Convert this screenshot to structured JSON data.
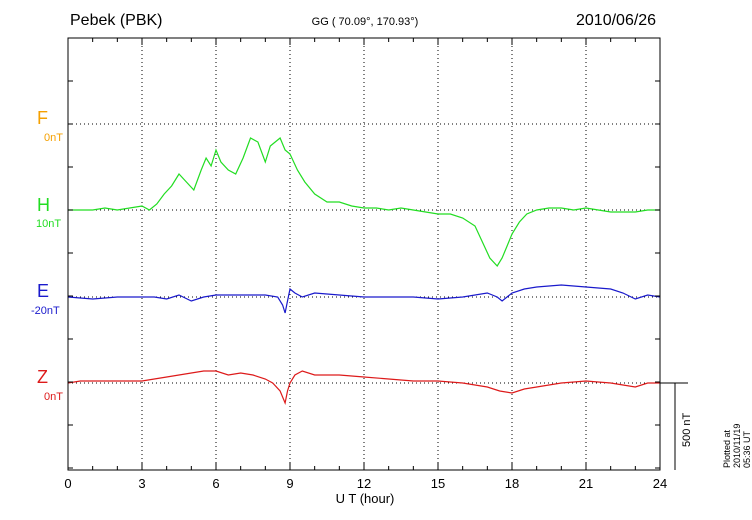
{
  "header": {
    "station": "Pebek (PBK)",
    "coords": "GG ( 70.09°, 170.93°)",
    "date": "2010/06/26",
    "plotted": "Plotted at 2010/11/19 05:36 UT"
  },
  "components": [
    {
      "letter": "F",
      "scale": "0nT",
      "color": "#f5a000"
    },
    {
      "letter": "H",
      "scale": "10nT",
      "color": "#22dd22"
    },
    {
      "letter": "E",
      "scale": "-20nT",
      "color": "#1a1acc"
    },
    {
      "letter": "Z",
      "scale": "0nT",
      "color": "#dd1a1a"
    }
  ],
  "scale_bar": "500 nT",
  "chart_data": {
    "type": "line",
    "xlabel": "U T (hour)",
    "xlim": [
      0,
      24
    ],
    "xticks": [
      "0",
      "3",
      "6",
      "9",
      "12",
      "15",
      "18",
      "21",
      "24"
    ],
    "series": [
      {
        "color": "#22dd22",
        "x": [
          0,
          0.5,
          1,
          1.5,
          2,
          2.5,
          3,
          3.3,
          3.6,
          3.9,
          4.2,
          4.5,
          4.8,
          5.1,
          5.4,
          5.6,
          5.8,
          6.0,
          6.2,
          6.5,
          6.8,
          7.1,
          7.4,
          7.7,
          8.0,
          8.2,
          8.4,
          8.6,
          8.8,
          9.0,
          9.3,
          9.6,
          10.0,
          10.5,
          11,
          11.5,
          12,
          12.5,
          13,
          13.5,
          14,
          14.5,
          15,
          15.5,
          16,
          16.5,
          16.8,
          17.1,
          17.4,
          17.6,
          17.8,
          18.0,
          18.3,
          18.6,
          19,
          19.5,
          20,
          20.5,
          21,
          21.5,
          22,
          22.5,
          23,
          23.5,
          24
        ],
        "y": [
          0,
          0,
          0,
          5,
          0,
          5,
          10,
          0,
          15,
          40,
          60,
          90,
          70,
          50,
          100,
          130,
          110,
          150,
          120,
          100,
          90,
          130,
          180,
          170,
          120,
          160,
          170,
          180,
          150,
          140,
          100,
          70,
          40,
          20,
          20,
          10,
          5,
          5,
          0,
          5,
          0,
          -5,
          -10,
          -10,
          -20,
          -40,
          -80,
          -120,
          -140,
          -120,
          -90,
          -60,
          -30,
          -10,
          0,
          5,
          5,
          0,
          5,
          0,
          -5,
          -5,
          -5,
          0,
          0
        ]
      },
      {
        "color": "#1a1acc",
        "x": [
          0,
          1,
          2,
          3,
          3.5,
          4,
          4.5,
          5,
          5.5,
          6,
          7,
          8,
          8.5,
          8.7,
          8.8,
          8.9,
          9.0,
          9.2,
          9.5,
          10,
          11,
          12,
          13,
          14,
          15,
          16,
          17,
          17.4,
          17.6,
          18,
          18.5,
          19,
          20,
          21,
          22,
          22.5,
          23,
          23.5,
          24
        ],
        "y": [
          0,
          -5,
          0,
          0,
          0,
          -5,
          5,
          -10,
          0,
          5,
          5,
          5,
          0,
          -20,
          -40,
          -10,
          20,
          10,
          0,
          10,
          5,
          0,
          0,
          0,
          -5,
          0,
          10,
          0,
          -10,
          10,
          20,
          25,
          30,
          25,
          20,
          10,
          -5,
          5,
          0
        ]
      },
      {
        "color": "#dd1a1a",
        "x": [
          0,
          0.5,
          1,
          2,
          3,
          3.5,
          4,
          4.5,
          5,
          5.5,
          6,
          6.5,
          7,
          7.5,
          8,
          8.3,
          8.6,
          8.8,
          8.9,
          9.0,
          9.2,
          9.5,
          10,
          11,
          12,
          13,
          14,
          15,
          16,
          17,
          17.5,
          18,
          18.5,
          19,
          19.5,
          20,
          21,
          22,
          22.5,
          23,
          23.5,
          24
        ],
        "y": [
          0,
          5,
          5,
          5,
          5,
          10,
          15,
          20,
          25,
          30,
          30,
          20,
          25,
          20,
          10,
          0,
          -20,
          -50,
          -20,
          0,
          20,
          30,
          20,
          20,
          15,
          10,
          5,
          5,
          0,
          -10,
          -20,
          -25,
          -15,
          -10,
          -5,
          0,
          5,
          0,
          -5,
          -10,
          0,
          0
        ]
      }
    ]
  }
}
